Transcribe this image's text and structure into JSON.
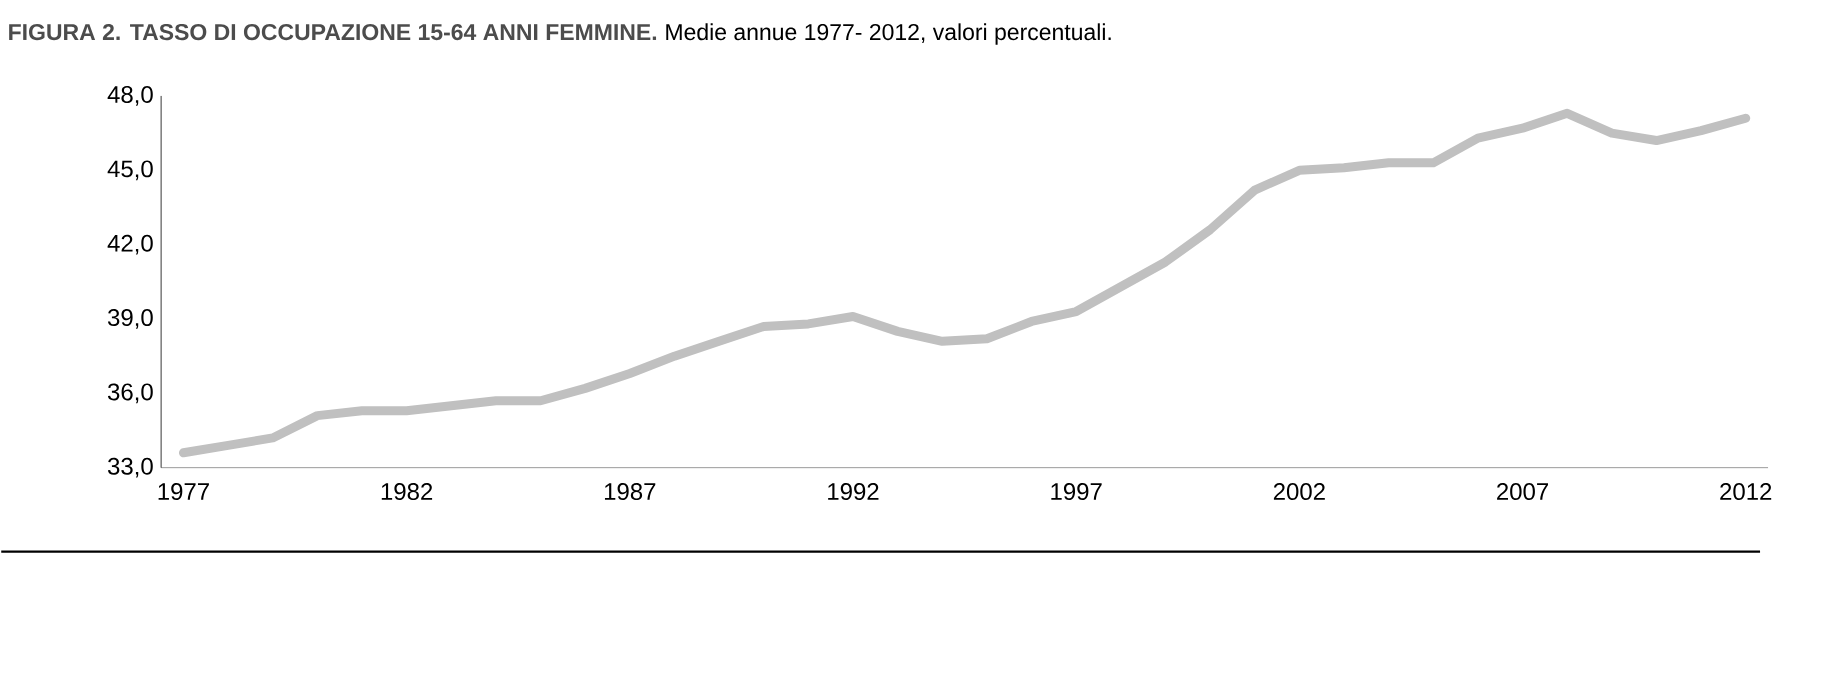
{
  "chart_data": {
    "type": "line",
    "title": "FIGURA 2. TASSO DI OCCUPAZIONE 15-64 ANNI FEMMINE.",
    "subtitle": "Medie annue 1977- 2012, valori percentuali.",
    "x": [
      1977,
      1978,
      1979,
      1980,
      1981,
      1982,
      1983,
      1984,
      1985,
      1986,
      1987,
      1988,
      1989,
      1990,
      1991,
      1992,
      1993,
      1994,
      1995,
      1996,
      1997,
      1998,
      1999,
      2000,
      2001,
      2002,
      2003,
      2004,
      2005,
      2006,
      2007,
      2008,
      2009,
      2010,
      2011,
      2012
    ],
    "values": [
      33.6,
      33.9,
      34.2,
      35.1,
      35.3,
      35.3,
      35.5,
      35.7,
      35.7,
      36.2,
      36.8,
      37.5,
      38.1,
      38.7,
      38.8,
      39.1,
      38.5,
      38.1,
      38.2,
      38.9,
      39.3,
      40.3,
      41.3,
      42.6,
      44.2,
      45.0,
      45.1,
      45.3,
      45.3,
      46.3,
      46.7,
      47.3,
      46.5,
      46.2,
      46.6,
      47.1
    ],
    "color": "#c0c0c0",
    "xlim": [
      1976.5,
      2012.5
    ],
    "ylim": [
      33,
      48
    ],
    "xticks": [
      1977,
      1982,
      1987,
      1992,
      1997,
      2002,
      2007,
      2012
    ],
    "yticks": [
      {
        "value": 33,
        "label": "33,0"
      },
      {
        "value": 36,
        "label": "36,0"
      },
      {
        "value": 39,
        "label": "39,0"
      },
      {
        "value": 42,
        "label": "42,0"
      },
      {
        "value": 45,
        "label": "45,0"
      },
      {
        "value": 48,
        "label": "48,0"
      }
    ]
  }
}
